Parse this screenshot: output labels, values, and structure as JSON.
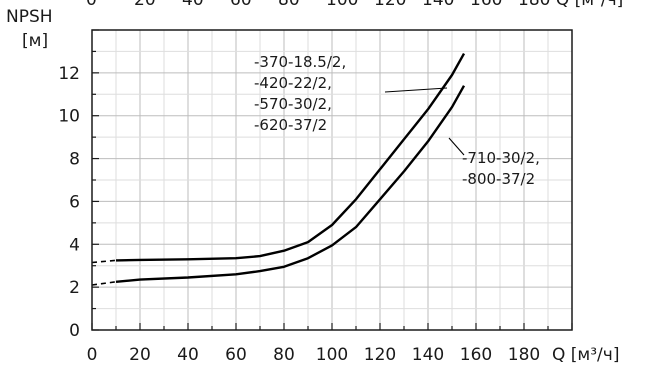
{
  "chart_data": {
    "type": "line",
    "title": "",
    "ylabel_lines": [
      "NPSH",
      "[м]"
    ],
    "xlabel": "Q [м³/ч]",
    "xlim": [
      0,
      200
    ],
    "ylim": [
      0,
      14
    ],
    "x_ticks": [
      0,
      20,
      40,
      60,
      80,
      100,
      120,
      140,
      160,
      180
    ],
    "y_ticks": [
      0,
      2,
      4,
      6,
      8,
      10,
      12
    ],
    "top_tick_labels": [
      "0",
      "20",
      "40",
      "60",
      "80",
      "100",
      "120",
      "140",
      "160",
      "180 Q [м³/ч]"
    ],
    "grid": true,
    "legend": "none",
    "series": [
      {
        "annotation": [
          "-370-18.5/2,",
          "-420-22/2,",
          "-570-30/2,",
          "-620-37/2"
        ],
        "dashed_extension": {
          "x": [
            0,
            10
          ],
          "y": [
            3.15,
            3.25
          ]
        },
        "x": [
          10,
          20,
          40,
          60,
          70,
          80,
          90,
          100,
          110,
          120,
          130,
          140,
          150,
          155
        ],
        "y": [
          3.25,
          3.27,
          3.3,
          3.35,
          3.45,
          3.7,
          4.1,
          4.9,
          6.1,
          7.5,
          8.9,
          10.3,
          11.9,
          12.9
        ]
      },
      {
        "annotation": [
          "-710-30/2,",
          "-800-37/2"
        ],
        "dashed_extension": {
          "x": [
            0,
            10
          ],
          "y": [
            2.1,
            2.25
          ]
        },
        "x": [
          10,
          20,
          40,
          60,
          70,
          80,
          90,
          100,
          110,
          120,
          130,
          140,
          150,
          155
        ],
        "y": [
          2.25,
          2.35,
          2.45,
          2.6,
          2.75,
          2.95,
          3.35,
          3.95,
          4.8,
          6.1,
          7.4,
          8.8,
          10.4,
          11.4
        ]
      }
    ]
  }
}
